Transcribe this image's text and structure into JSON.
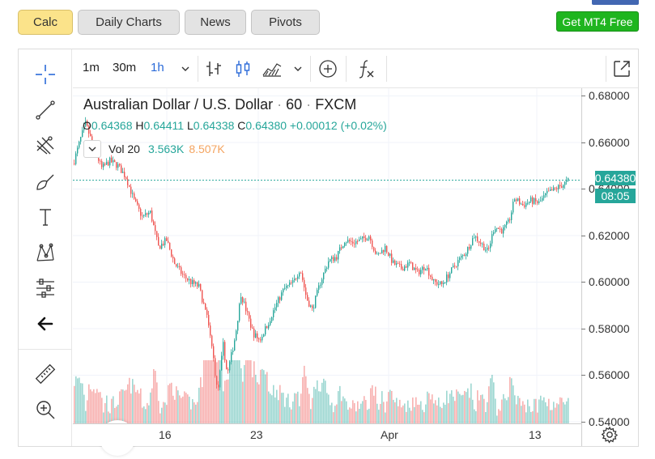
{
  "tabs": [
    {
      "label": "Calc",
      "active": true
    },
    {
      "label": "Daily Charts",
      "active": false
    },
    {
      "label": "News",
      "active": false
    },
    {
      "label": "Pivots",
      "active": false
    }
  ],
  "mt4_button": "Get MT4 Free",
  "toolbar": {
    "timeframes": [
      {
        "label": "1m",
        "selected": false
      },
      {
        "label": "30m",
        "selected": false
      },
      {
        "label": "1h",
        "selected": true
      }
    ],
    "icons": [
      "crosshair-icon",
      "trend-line-icon",
      "pitchfork-icon",
      "brush-icon",
      "text-icon",
      "pattern-icon",
      "prediction-icon",
      "back-arrow-icon",
      "ruler-icon",
      "zoom-in-icon",
      "bars-icon",
      "candles-icon",
      "area-icon",
      "add-compare-icon",
      "indicators-icon",
      "fullscreen-icon",
      "gear-icon"
    ]
  },
  "legend": {
    "symbol": "Australian Dollar / U.S. Dollar",
    "interval": "60",
    "exchange": "FXCM",
    "ohlc": {
      "o_label": "O",
      "o": "0.64368",
      "h_label": "H",
      "h": "0.64411",
      "l_label": "L",
      "l": "0.64338",
      "c_label": "C",
      "c": "0.64380",
      "change": "+0.00012 (+0.02%)"
    },
    "volume": {
      "label": "Vol 20",
      "value": "3.563K",
      "ma": "8.507K"
    }
  },
  "price_tag": "0.64380",
  "countdown": "08:05",
  "chart_data": {
    "type": "candlestick",
    "title": "Australian Dollar / U.S. Dollar · 60 · FXCM",
    "yaxis_ticks": [
      "0.68000",
      "0.66000",
      "0.64000",
      "0.62000",
      "0.60000",
      "0.58000",
      "0.56000",
      "0.54000"
    ],
    "ylim": [
      0.5393,
      0.6833
    ],
    "xaxis_ticks": [
      "16",
      "23",
      "Apr",
      "13"
    ],
    "last_price": 0.6438,
    "price_path": [
      {
        "t": 0,
        "p": 0.651
      },
      {
        "t": 10,
        "p": 0.663
      },
      {
        "t": 15,
        "p": 0.668
      },
      {
        "t": 25,
        "p": 0.658
      },
      {
        "t": 35,
        "p": 0.649
      },
      {
        "t": 45,
        "p": 0.652
      },
      {
        "t": 55,
        "p": 0.65
      },
      {
        "t": 65,
        "p": 0.645
      },
      {
        "t": 75,
        "p": 0.635
      },
      {
        "t": 85,
        "p": 0.628
      },
      {
        "t": 95,
        "p": 0.63
      },
      {
        "t": 105,
        "p": 0.615
      },
      {
        "t": 115,
        "p": 0.618
      },
      {
        "t": 125,
        "p": 0.608
      },
      {
        "t": 135,
        "p": 0.603
      },
      {
        "t": 145,
        "p": 0.6
      },
      {
        "t": 155,
        "p": 0.598
      },
      {
        "t": 165,
        "p": 0.585
      },
      {
        "t": 172,
        "p": 0.57
      },
      {
        "t": 178,
        "p": 0.552
      },
      {
        "t": 185,
        "p": 0.573
      },
      {
        "t": 190,
        "p": 0.56
      },
      {
        "t": 200,
        "p": 0.577
      },
      {
        "t": 207,
        "p": 0.595
      },
      {
        "t": 215,
        "p": 0.586
      },
      {
        "t": 222,
        "p": 0.578
      },
      {
        "t": 230,
        "p": 0.575
      },
      {
        "t": 240,
        "p": 0.582
      },
      {
        "t": 250,
        "p": 0.59
      },
      {
        "t": 260,
        "p": 0.597
      },
      {
        "t": 272,
        "p": 0.6
      },
      {
        "t": 280,
        "p": 0.606
      },
      {
        "t": 288,
        "p": 0.593
      },
      {
        "t": 295,
        "p": 0.588
      },
      {
        "t": 305,
        "p": 0.6
      },
      {
        "t": 315,
        "p": 0.609
      },
      {
        "t": 325,
        "p": 0.611
      },
      {
        "t": 335,
        "p": 0.618
      },
      {
        "t": 345,
        "p": 0.617
      },
      {
        "t": 355,
        "p": 0.618
      },
      {
        "t": 365,
        "p": 0.62
      },
      {
        "t": 375,
        "p": 0.611
      },
      {
        "t": 385,
        "p": 0.615
      },
      {
        "t": 395,
        "p": 0.608
      },
      {
        "t": 405,
        "p": 0.606
      },
      {
        "t": 415,
        "p": 0.608
      },
      {
        "t": 425,
        "p": 0.604
      },
      {
        "t": 435,
        "p": 0.607
      },
      {
        "t": 445,
        "p": 0.6
      },
      {
        "t": 455,
        "p": 0.599
      },
      {
        "t": 465,
        "p": 0.604
      },
      {
        "t": 475,
        "p": 0.609
      },
      {
        "t": 485,
        "p": 0.613
      },
      {
        "t": 495,
        "p": 0.62
      },
      {
        "t": 505,
        "p": 0.616
      },
      {
        "t": 512,
        "p": 0.613
      },
      {
        "t": 520,
        "p": 0.624
      },
      {
        "t": 530,
        "p": 0.622
      },
      {
        "t": 538,
        "p": 0.626
      },
      {
        "t": 545,
        "p": 0.636
      },
      {
        "t": 555,
        "p": 0.633
      },
      {
        "t": 565,
        "p": 0.635
      },
      {
        "t": 575,
        "p": 0.634
      },
      {
        "t": 585,
        "p": 0.638
      },
      {
        "t": 595,
        "p": 0.64
      },
      {
        "t": 605,
        "p": 0.642
      },
      {
        "t": 612,
        "p": 0.6438
      }
    ]
  },
  "colors": {
    "up": "#26a69a",
    "down": "#ef5350",
    "accent": "#2a6ad8",
    "highlight": "#fbe38a",
    "mt4": "#1fb51f"
  }
}
